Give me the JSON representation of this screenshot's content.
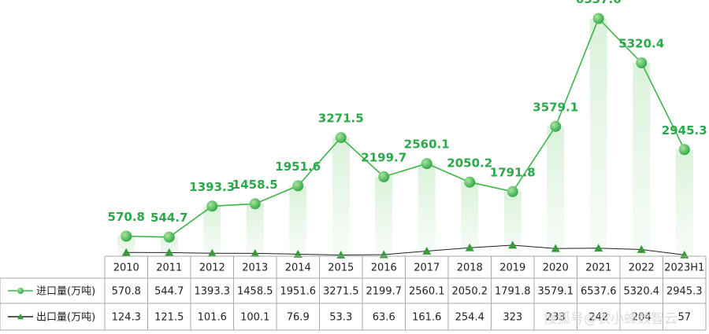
{
  "chart_data": {
    "type": "line",
    "categories": [
      "2010",
      "2011",
      "2012",
      "2013",
      "2014",
      "2015",
      "2016",
      "2017",
      "2018",
      "2019",
      "2020",
      "2021",
      "2022",
      "2023H1"
    ],
    "series": [
      {
        "name": "进口量(万吨)",
        "color": "#3cb54a",
        "values": [
          570.8,
          544.7,
          1393.3,
          1458.5,
          1951.6,
          3271.5,
          2199.7,
          2560.1,
          2050.2,
          1791.8,
          3579.1,
          6537.6,
          5320.4,
          2945.3
        ]
      },
      {
        "name": "出口量(万吨)",
        "color": "#1f7a2e",
        "values": [
          124.3,
          121.5,
          101.6,
          100.1,
          76.9,
          53.3,
          63.6,
          161.6,
          254.4,
          323,
          233,
          242,
          204,
          57
        ]
      }
    ],
    "ylim": [
      0,
      7000
    ],
    "watermark": "搜狐号@农小蜂数智云"
  }
}
